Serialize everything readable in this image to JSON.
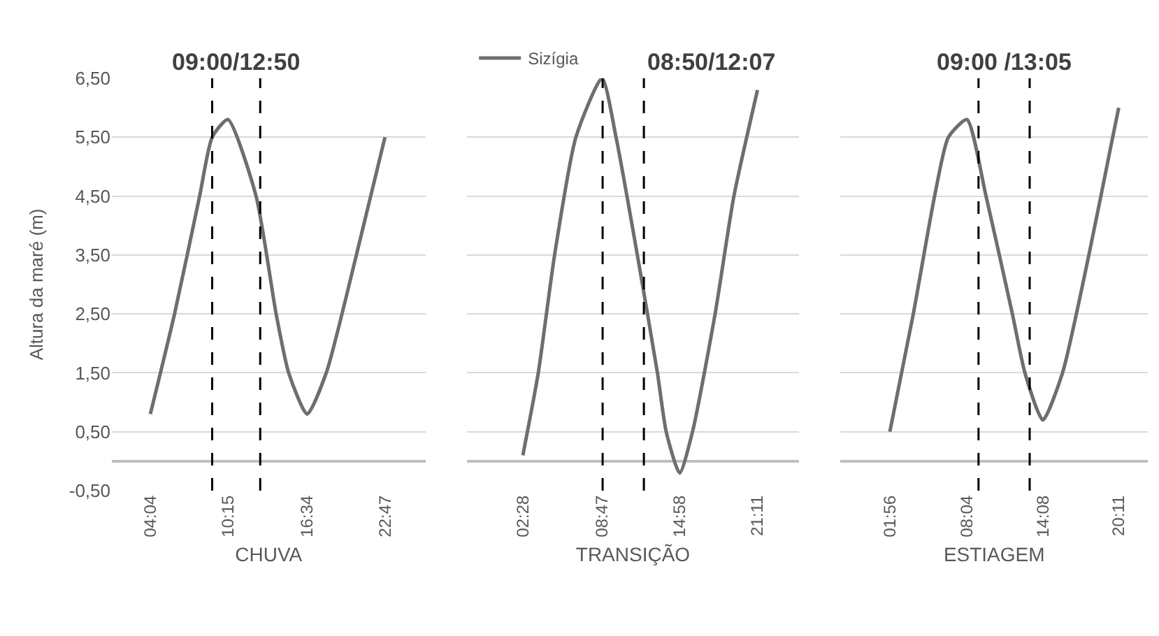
{
  "chart_data": [
    {
      "type": "line",
      "xlabel": "CHUVA",
      "ylabel": "Altura da maré (m)",
      "annotations": [
        "09:00/12:50"
      ],
      "xlim": [
        1,
        26
      ],
      "xticks": [
        {
          "value": 4.07,
          "label": "04:04"
        },
        {
          "value": 10.25,
          "label": "10:15"
        },
        {
          "value": 16.57,
          "label": "16:34"
        },
        {
          "value": 22.78,
          "label": "22:47"
        }
      ],
      "ylim": [
        -0.5,
        6.5
      ],
      "yticks": [
        {
          "value": 6.5,
          "label": "6,50"
        },
        {
          "value": 5.5,
          "label": "5,50"
        },
        {
          "value": 4.5,
          "label": "4,50"
        },
        {
          "value": 3.5,
          "label": "3,50"
        },
        {
          "value": 2.5,
          "label": "2,50"
        },
        {
          "value": 1.5,
          "label": "1,50"
        },
        {
          "value": 0.5,
          "label": "0,50"
        },
        {
          "value": -0.5,
          "label": "-0,50"
        }
      ],
      "grid": "y",
      "line_style": "solid",
      "marker": "none",
      "ref_lines": [
        {
          "axis": "x",
          "value": 9.0,
          "color": "#000000",
          "line_style": "dashed"
        },
        {
          "axis": "x",
          "value": 12.83,
          "color": "#000000",
          "line_style": "dashed"
        }
      ],
      "series": [
        {
          "color": "#6e6e6e",
          "x": [
            4.07,
            6.0,
            8.0,
            9.0,
            10.25,
            12.5,
            14.1,
            15.1,
            16.57,
            18.1,
            20.5,
            22.78
          ],
          "values": [
            0.8,
            2.5,
            4.5,
            5.5,
            5.8,
            4.5,
            2.5,
            1.5,
            0.8,
            1.5,
            3.5,
            5.5
          ]
        }
      ]
    },
    {
      "type": "line",
      "xlabel": "TRANSIÇÃO",
      "annotations": [
        "08:50/12:07"
      ],
      "tick_labels": "x",
      "legend": "top left",
      "xlim": [
        -2,
        24.5
      ],
      "xticks": [
        {
          "value": 2.47,
          "label": "02:28"
        },
        {
          "value": 8.78,
          "label": "08:47"
        },
        {
          "value": 14.97,
          "label": "14:58"
        },
        {
          "value": 21.18,
          "label": "21:11"
        }
      ],
      "ylim": [
        -0.5,
        6.5
      ],
      "yticks": [
        {
          "value": 6.5,
          "label": null
        },
        {
          "value": 5.5,
          "label": null
        },
        {
          "value": 4.5,
          "label": null
        },
        {
          "value": 3.5,
          "label": null
        },
        {
          "value": 2.5,
          "label": null
        },
        {
          "value": 1.5,
          "label": null
        },
        {
          "value": 0.5,
          "label": null
        },
        {
          "value": -0.5,
          "label": null
        }
      ],
      "grid": "y",
      "line_style": "solid",
      "marker": "none",
      "ref_lines": [
        {
          "axis": "x",
          "value": 8.83,
          "color": "#000000",
          "line_style": "dashed"
        },
        {
          "axis": "x",
          "value": 12.12,
          "color": "#000000",
          "line_style": "dashed"
        }
      ],
      "series": [
        {
          "name": "Sizígia",
          "color": "#6e6e6e",
          "x": [
            2.47,
            3.7,
            5.0,
            6.7,
            8.78,
            9.9,
            11.6,
            13.2,
            13.9,
            14.97,
            16.0,
            17.8,
            19.3,
            21.18
          ],
          "values": [
            0.1,
            1.5,
            3.5,
            5.5,
            6.5,
            5.5,
            3.5,
            1.5,
            0.5,
            -0.2,
            0.5,
            2.5,
            4.5,
            6.3
          ]
        }
      ]
    },
    {
      "type": "line",
      "xlabel": "ESTIAGEM",
      "annotations": [
        "09:00 /13:05"
      ],
      "tick_labels": "x",
      "xlim": [
        -2,
        22.5
      ],
      "xticks": [
        {
          "value": 1.93,
          "label": "01:56"
        },
        {
          "value": 8.07,
          "label": "08:04"
        },
        {
          "value": 14.13,
          "label": "14:08"
        },
        {
          "value": 20.18,
          "label": "20:11"
        }
      ],
      "ylim": [
        -0.5,
        6.5
      ],
      "yticks": [
        {
          "value": 6.5,
          "label": null
        },
        {
          "value": 5.5,
          "label": null
        },
        {
          "value": 4.5,
          "label": null
        },
        {
          "value": 3.5,
          "label": null
        },
        {
          "value": 2.5,
          "label": null
        },
        {
          "value": 1.5,
          "label": null
        },
        {
          "value": 0.5,
          "label": null
        },
        {
          "value": -0.5,
          "label": null
        }
      ],
      "grid": "y",
      "line_style": "solid",
      "marker": "none",
      "ref_lines": [
        {
          "axis": "x",
          "value": 9.0,
          "color": "#000000",
          "line_style": "dashed"
        },
        {
          "axis": "x",
          "value": 13.08,
          "color": "#000000",
          "line_style": "dashed"
        }
      ],
      "series": [
        {
          "color": "#6e6e6e",
          "x": [
            1.93,
            3.8,
            5.5,
            6.6,
            8.07,
            9.6,
            11.7,
            12.7,
            14.13,
            15.7,
            17.8,
            19.7,
            20.18
          ],
          "values": [
            0.5,
            2.5,
            4.5,
            5.5,
            5.8,
            4.5,
            2.5,
            1.5,
            0.7,
            1.5,
            3.5,
            5.5,
            6.0
          ]
        }
      ]
    }
  ]
}
